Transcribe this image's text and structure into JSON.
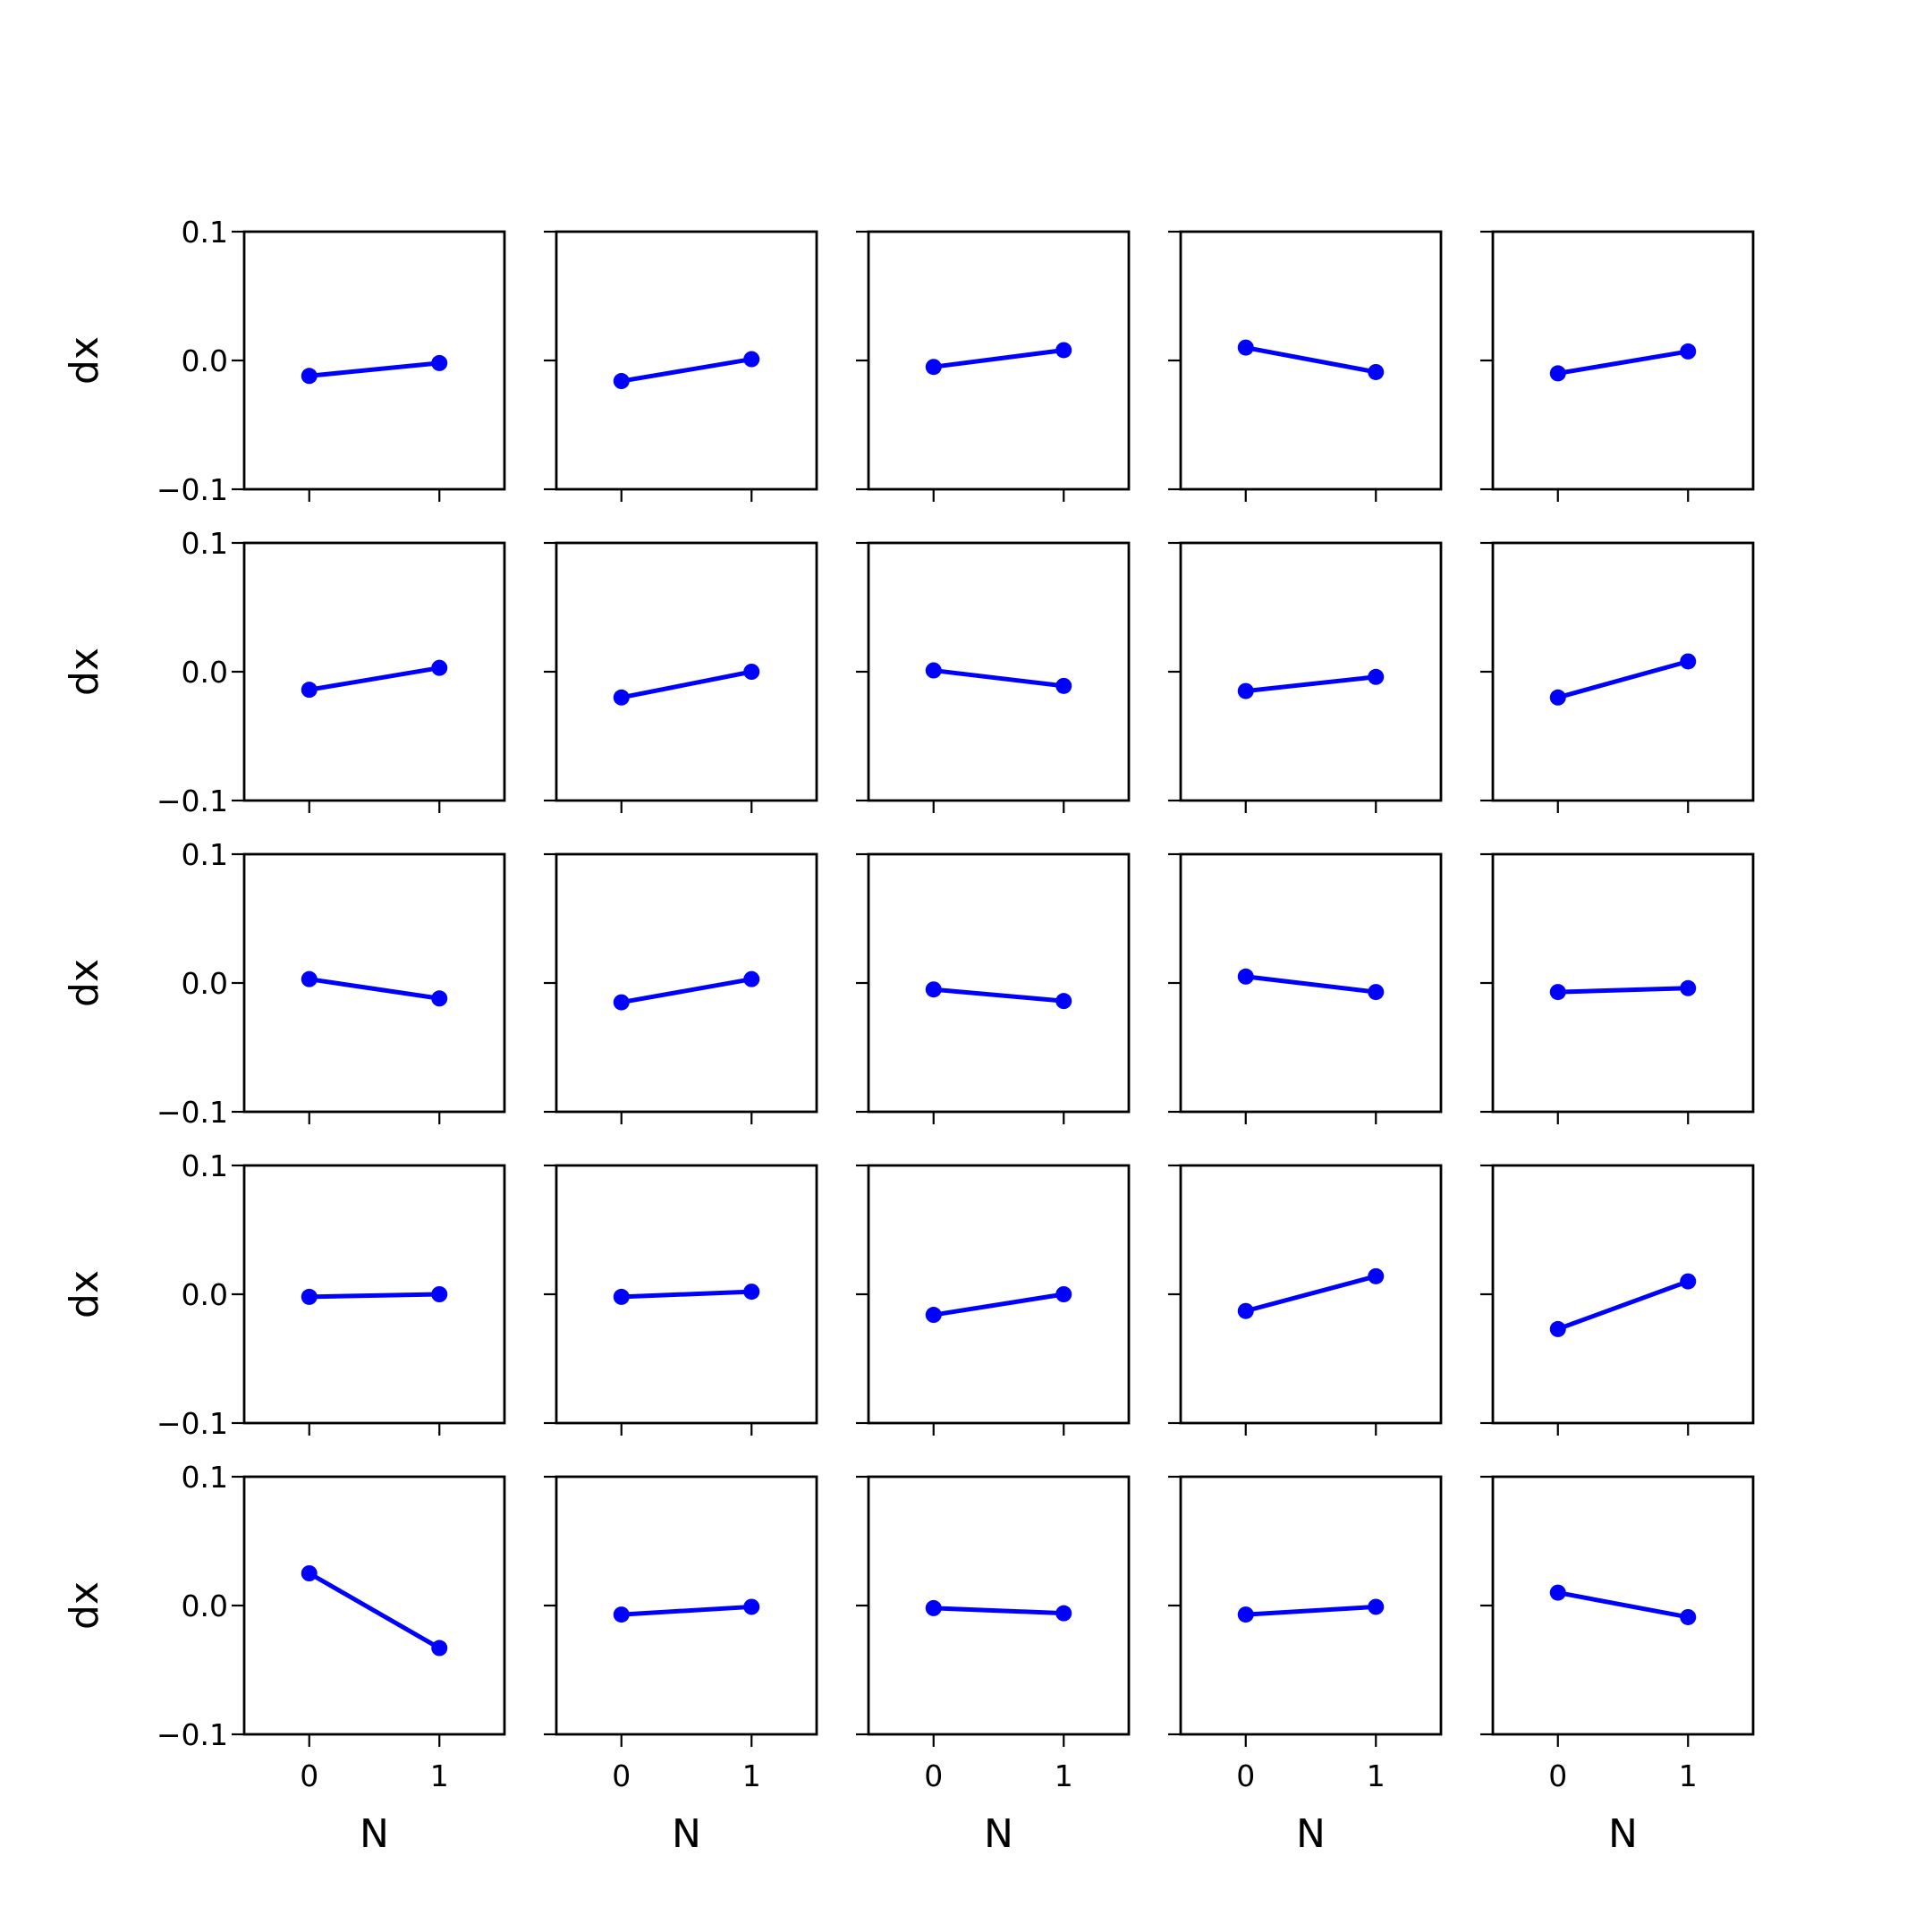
{
  "chart_data": {
    "type": "line",
    "grid": false,
    "rows": 5,
    "cols": 5,
    "xlabel": "N",
    "ylabel": "dx",
    "xlim": [
      -0.5,
      1.5
    ],
    "ylim": [
      -0.1,
      0.1
    ],
    "xticks": [
      0,
      1
    ],
    "xtick_labels": [
      "0",
      "1"
    ],
    "yticks": [
      -0.1,
      0.0,
      0.1
    ],
    "ytick_labels": [
      "−0.1",
      "0.0",
      "0.1"
    ],
    "line_color": "#0000ff",
    "x": [
      0,
      1
    ],
    "panels": [
      {
        "row": 0,
        "col": 0,
        "y": [
          -0.012,
          -0.002
        ]
      },
      {
        "row": 0,
        "col": 1,
        "y": [
          -0.016,
          0.001
        ]
      },
      {
        "row": 0,
        "col": 2,
        "y": [
          -0.005,
          0.008
        ]
      },
      {
        "row": 0,
        "col": 3,
        "y": [
          0.01,
          -0.009
        ]
      },
      {
        "row": 0,
        "col": 4,
        "y": [
          -0.01,
          0.007
        ]
      },
      {
        "row": 1,
        "col": 0,
        "y": [
          -0.014,
          0.003
        ]
      },
      {
        "row": 1,
        "col": 1,
        "y": [
          -0.02,
          0.0
        ]
      },
      {
        "row": 1,
        "col": 2,
        "y": [
          0.001,
          -0.011
        ]
      },
      {
        "row": 1,
        "col": 3,
        "y": [
          -0.015,
          -0.004
        ]
      },
      {
        "row": 1,
        "col": 4,
        "y": [
          -0.02,
          0.008
        ]
      },
      {
        "row": 2,
        "col": 0,
        "y": [
          0.003,
          -0.012
        ]
      },
      {
        "row": 2,
        "col": 1,
        "y": [
          -0.015,
          0.003
        ]
      },
      {
        "row": 2,
        "col": 2,
        "y": [
          -0.005,
          -0.014
        ]
      },
      {
        "row": 2,
        "col": 3,
        "y": [
          0.005,
          -0.007
        ]
      },
      {
        "row": 2,
        "col": 4,
        "y": [
          -0.007,
          -0.004
        ]
      },
      {
        "row": 3,
        "col": 0,
        "y": [
          -0.002,
          0.0
        ]
      },
      {
        "row": 3,
        "col": 1,
        "y": [
          -0.002,
          0.002
        ]
      },
      {
        "row": 3,
        "col": 2,
        "y": [
          -0.016,
          0.0
        ]
      },
      {
        "row": 3,
        "col": 3,
        "y": [
          -0.013,
          0.014
        ]
      },
      {
        "row": 3,
        "col": 4,
        "y": [
          -0.027,
          0.01
        ]
      },
      {
        "row": 4,
        "col": 0,
        "y": [
          0.025,
          -0.033
        ]
      },
      {
        "row": 4,
        "col": 1,
        "y": [
          -0.007,
          -0.001
        ]
      },
      {
        "row": 4,
        "col": 2,
        "y": [
          -0.002,
          -0.006
        ]
      },
      {
        "row": 4,
        "col": 3,
        "y": [
          -0.007,
          -0.001
        ]
      },
      {
        "row": 4,
        "col": 4,
        "y": [
          0.01,
          -0.009
        ]
      }
    ]
  }
}
